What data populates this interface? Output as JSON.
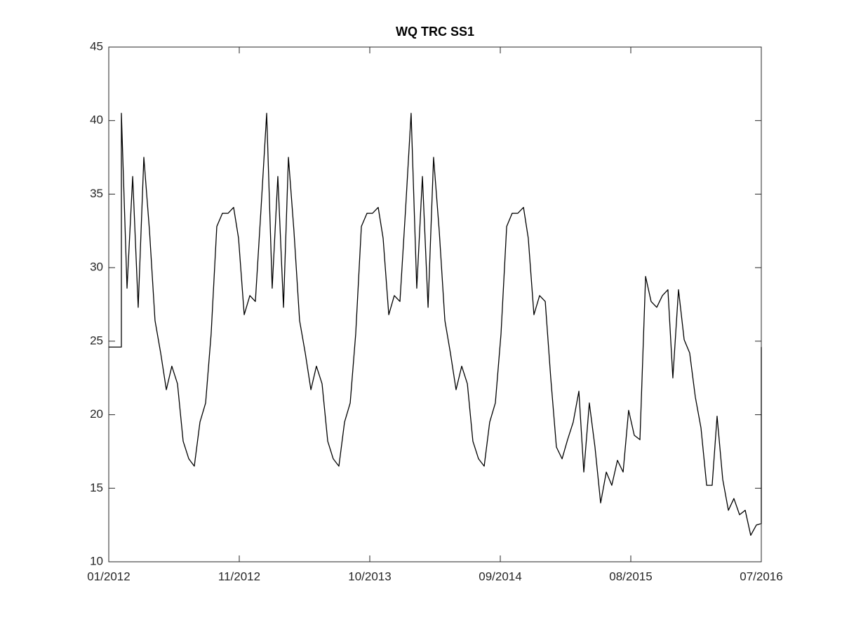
{
  "chart_data": {
    "type": "line",
    "title": "WQ TRC SS1",
    "x": [
      2012.0,
      2012.087,
      2012.087,
      2012.126,
      2012.165,
      2012.203,
      2012.242,
      2012.281,
      2012.319,
      2012.358,
      2012.397,
      2012.435,
      2012.474,
      2012.513,
      2012.552,
      2012.59,
      2012.629,
      2012.668,
      2012.706,
      2012.745,
      2012.784,
      2012.823,
      2012.861,
      2012.895,
      2012.934,
      2012.973,
      2013.011,
      2013.05,
      2013.089,
      2013.127,
      2013.166,
      2013.205,
      2013.239,
      2013.277,
      2013.316,
      2013.355,
      2013.394,
      2013.432,
      2013.471,
      2013.51,
      2013.548,
      2013.587,
      2013.626,
      2013.665,
      2013.703,
      2013.742,
      2013.781,
      2013.819,
      2013.858,
      2013.892,
      2013.931,
      2013.969,
      2014.008,
      2014.047,
      2014.085,
      2014.124,
      2014.163,
      2014.202,
      2014.24,
      2014.279,
      2014.318,
      2014.356,
      2014.395,
      2014.434,
      2014.473,
      2014.511,
      2014.55,
      2014.589,
      2014.627,
      2014.666,
      2014.705,
      2014.744,
      2014.782,
      2014.821,
      2014.86,
      2014.893,
      2014.932,
      2014.971,
      2015.01,
      2015.048,
      2015.087,
      2015.126,
      2015.164,
      2015.203,
      2015.242,
      2015.276,
      2015.314,
      2015.353,
      2015.392,
      2015.431,
      2015.469,
      2015.508,
      2015.547,
      2015.585,
      2015.624,
      2015.663,
      2015.702,
      2015.74,
      2015.779,
      2015.818,
      2015.856,
      2015.89,
      2015.929,
      2015.968,
      2016.006,
      2016.045,
      2016.084,
      2016.123,
      2016.161,
      2016.195,
      2016.234,
      2016.273,
      2016.311,
      2016.35,
      2016.389,
      2016.427,
      2016.466,
      2016.5,
      2016.5
    ],
    "series": [
      {
        "color": "#000000",
        "values": [
          24.6,
          24.6,
          40.5,
          28.6,
          36.2,
          27.3,
          37.5,
          32.5,
          26.4,
          24.2,
          21.7,
          23.3,
          22.1,
          18.2,
          17.0,
          16.5,
          19.5,
          20.8,
          25.5,
          32.8,
          33.7,
          33.7,
          34.1,
          32.0,
          26.8,
          28.1,
          27.7,
          34.0,
          40.5,
          28.6,
          36.2,
          27.3,
          37.5,
          32.5,
          26.4,
          24.2,
          21.7,
          23.3,
          22.1,
          18.2,
          17.0,
          16.5,
          19.5,
          20.8,
          25.5,
          32.8,
          33.7,
          33.7,
          34.1,
          32.0,
          26.8,
          28.1,
          27.7,
          34.0,
          40.5,
          28.6,
          36.2,
          27.3,
          37.5,
          32.5,
          26.4,
          24.2,
          21.7,
          23.3,
          22.1,
          18.2,
          17.0,
          16.5,
          19.5,
          20.8,
          25.5,
          32.8,
          33.7,
          33.7,
          34.1,
          32.0,
          26.8,
          28.1,
          27.7,
          22.5,
          17.8,
          17.0,
          18.3,
          19.5,
          21.6,
          16.1,
          20.8,
          17.8,
          14.0,
          16.1,
          15.2,
          16.9,
          16.1,
          20.3,
          18.6,
          18.3,
          29.4,
          27.7,
          27.3,
          28.1,
          28.5,
          22.5,
          28.5,
          25.1,
          24.2,
          21.2,
          19.1,
          15.2,
          15.2,
          19.9,
          15.6,
          13.5,
          14.3,
          13.2,
          13.5,
          11.8,
          12.5,
          12.6,
          24.6
        ]
      }
    ],
    "xlim": [
      2012.0,
      2016.5
    ],
    "xticks": [
      {
        "value": 2012.0,
        "label": "01/2012"
      },
      {
        "value": 2012.9,
        "label": "11/2012"
      },
      {
        "value": 2013.8,
        "label": "10/2013"
      },
      {
        "value": 2014.7,
        "label": "09/2014"
      },
      {
        "value": 2015.6,
        "label": "08/2015"
      },
      {
        "value": 2016.5,
        "label": "07/2016"
      }
    ],
    "ylim": [
      10,
      45
    ],
    "yticks": [
      10,
      15,
      20,
      25,
      30,
      35,
      40,
      45
    ]
  }
}
